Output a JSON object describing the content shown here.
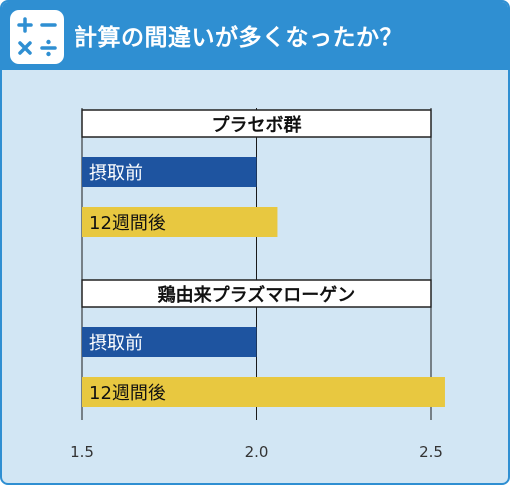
{
  "title": "計算の間違いが多くなったか？",
  "icon": "calculator-symbols-icon",
  "colors": {
    "frame": "#2f8fd2",
    "background": "#d2e6f4",
    "before": "#1e54a0",
    "after": "#e8c840",
    "gridline": "#1a1a1a"
  },
  "chart_data": {
    "type": "bar",
    "orientation": "horizontal",
    "xlim": [
      1.5,
      2.5
    ],
    "x_ticks": [
      "1.5",
      "2.0",
      "2.5"
    ],
    "groups": [
      {
        "name": "プラセボ群",
        "bars": [
          {
            "label": "摂取前",
            "value": 2.0
          },
          {
            "label": "12週間後",
            "value": 2.06
          }
        ]
      },
      {
        "name": "鶏由来プラズマローゲン",
        "bars": [
          {
            "label": "摂取前",
            "value": 2.0
          },
          {
            "label": "12週間後",
            "value": 2.54
          }
        ]
      }
    ]
  }
}
